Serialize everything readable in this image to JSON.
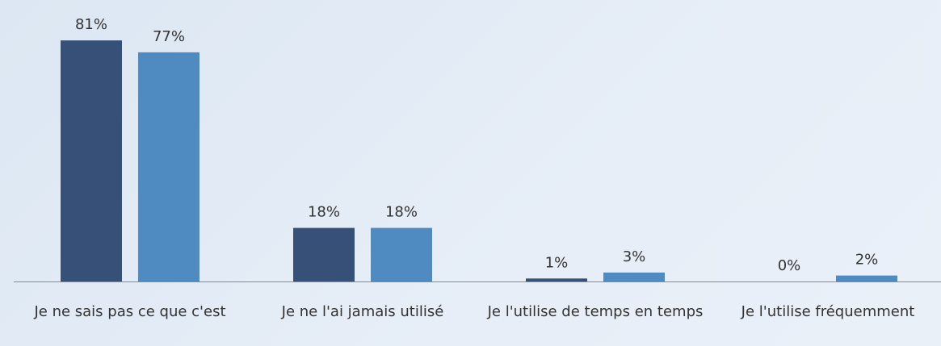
{
  "chart_data": {
    "type": "bar",
    "categories": [
      "Je ne sais pas ce que c'est",
      "Je ne l'ai jamais utilisé",
      "Je l'utilise de temps en temps",
      "Je l'utilise fréquemment"
    ],
    "series": [
      {
        "color": "#375078",
        "values": [
          81,
          18,
          1,
          0
        ],
        "value_labels": [
          "81%",
          "18%",
          "1%",
          "0%"
        ]
      },
      {
        "color": "#4f8bc0",
        "values": [
          77,
          18,
          3,
          2
        ],
        "value_labels": [
          "77%",
          "18%",
          "3%",
          "2%"
        ]
      }
    ]
  }
}
